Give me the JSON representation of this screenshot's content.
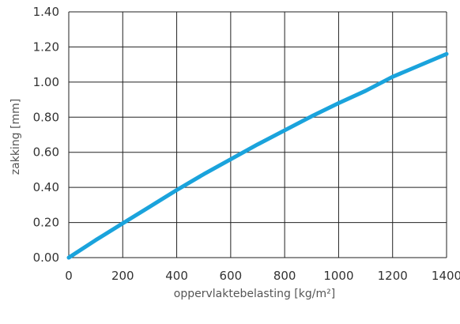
{
  "chart_data": {
    "type": "line",
    "title": "",
    "xlabel": "oppervlaktebelasting [kg/m²]",
    "ylabel": "zakking [mm]",
    "xlim": [
      0,
      1400
    ],
    "ylim": [
      0,
      1.4
    ],
    "grid": true,
    "x_ticks": [
      "0",
      "200",
      "400",
      "600",
      "800",
      "1000",
      "1200",
      "1400"
    ],
    "y_ticks": [
      "0.00",
      "0.20",
      "0.40",
      "0.60",
      "0.80",
      "1.00",
      "1.20",
      "1.40"
    ],
    "series": [
      {
        "color": "#1aa3dc",
        "x": [
          0,
          100,
          200,
          300,
          400,
          500,
          600,
          700,
          800,
          900,
          1000,
          1100,
          1200,
          1300,
          1400
        ],
        "y": [
          0.0,
          0.1,
          0.195,
          0.29,
          0.385,
          0.475,
          0.56,
          0.645,
          0.725,
          0.805,
          0.88,
          0.95,
          1.03,
          1.095,
          1.16
        ]
      }
    ]
  }
}
